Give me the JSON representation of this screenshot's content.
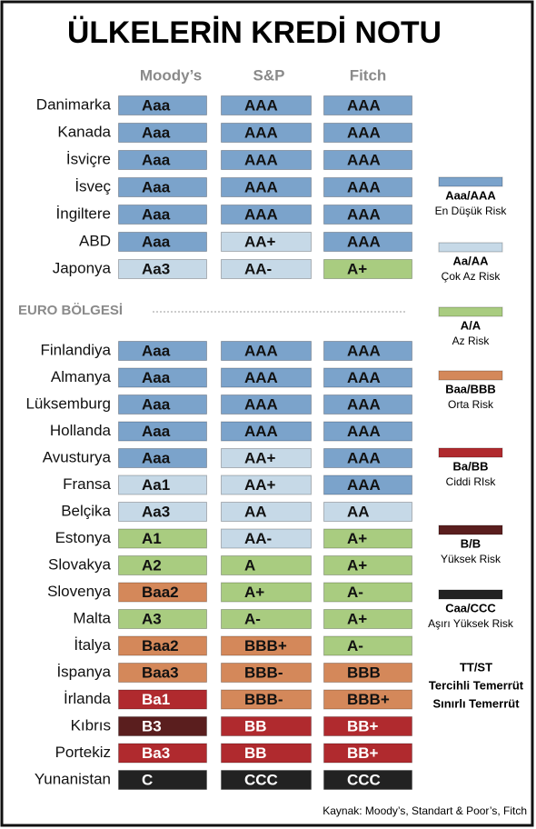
{
  "title": "ÜLKELERİN KREDİ NOTU",
  "columns": [
    "Moody’s",
    "S&P",
    "Fitch"
  ],
  "groups": [
    {
      "rows": [
        {
          "country": "Danimarka",
          "ratings": [
            "Aaa",
            "AAA",
            "AAA"
          ]
        },
        {
          "country": "Kanada",
          "ratings": [
            "Aaa",
            "AAA",
            "AAA"
          ]
        },
        {
          "country": "İsviçre",
          "ratings": [
            "Aaa",
            "AAA",
            "AAA"
          ]
        },
        {
          "country": "İsveç",
          "ratings": [
            "Aaa",
            "AAA",
            "AAA"
          ]
        },
        {
          "country": "İngiltere",
          "ratings": [
            "Aaa",
            "AAA",
            "AAA"
          ]
        },
        {
          "country": "ABD",
          "ratings": [
            "Aaa",
            "AA+",
            "AAA"
          ]
        },
        {
          "country": "Japonya",
          "ratings": [
            "Aa3",
            "AA-",
            "A+"
          ]
        }
      ]
    },
    {
      "label": "EURO BÖLGESİ",
      "rows": [
        {
          "country": "Finlandiya",
          "ratings": [
            "Aaa",
            "AAA",
            "AAA"
          ]
        },
        {
          "country": "Almanya",
          "ratings": [
            "Aaa",
            "AAA",
            "AAA"
          ]
        },
        {
          "country": "Lüksemburg",
          "ratings": [
            "Aaa",
            "AAA",
            "AAA"
          ]
        },
        {
          "country": "Hollanda",
          "ratings": [
            "Aaa",
            "AAA",
            "AAA"
          ]
        },
        {
          "country": "Avusturya",
          "ratings": [
            "Aaa",
            "AA+",
            "AAA"
          ]
        },
        {
          "country": "Fransa",
          "ratings": [
            "Aa1",
            "AA+",
            "AAA"
          ]
        },
        {
          "country": "Belçika",
          "ratings": [
            "Aa3",
            "AA",
            "AA"
          ]
        },
        {
          "country": "Estonya",
          "ratings": [
            "A1",
            "AA-",
            "A+"
          ]
        },
        {
          "country": "Slovakya",
          "ratings": [
            "A2",
            "A",
            "A+"
          ]
        },
        {
          "country": "Slovenya",
          "ratings": [
            "Baa2",
            "A+",
            "A-"
          ]
        },
        {
          "country": "Malta",
          "ratings": [
            "A3",
            "A-",
            "A+"
          ]
        },
        {
          "country": "İtalya",
          "ratings": [
            "Baa2",
            "BBB+",
            "A-"
          ]
        },
        {
          "country": "İspanya",
          "ratings": [
            "Baa3",
            "BBB-",
            "BBB"
          ]
        },
        {
          "country": "İrlanda",
          "ratings": [
            "Ba1",
            "BBB-",
            "BBB+"
          ]
        },
        {
          "country": "Kıbrıs",
          "ratings": [
            "B3",
            "BB",
            "BB+"
          ]
        },
        {
          "country": "Portekiz",
          "ratings": [
            "Ba3",
            "BB",
            "BB+"
          ]
        },
        {
          "country": "Yunanistan",
          "ratings": [
            "C",
            "CCC",
            "CCC"
          ]
        }
      ]
    }
  ],
  "legend": [
    {
      "label": "Aaa/AAA",
      "description": "En Düşük Risk",
      "color": "#7ba3cb"
    },
    {
      "label": "Aa/AA",
      "description": "Çok Az Risk",
      "color": "#c6d9e7"
    },
    {
      "label": "A/A",
      "description": "Az Risk",
      "color": "#a9cc80"
    },
    {
      "label": "Baa/BBB",
      "description": "Orta Risk",
      "color": "#d4885a"
    },
    {
      "label": "Ba/BB",
      "description": "Ciddi RIsk",
      "color": "#b02a2e"
    },
    {
      "label": "B/B",
      "description": "Yüksek Risk",
      "color": "#5a1e1e"
    },
    {
      "label": "Caa/CCC",
      "description": "Aşırı Yüksek Risk",
      "color": "#222222"
    }
  ],
  "note": [
    "TT/ST",
    "Tercihli Temerrüt",
    "Sınırlı Temerrüt"
  ],
  "source": "Kaynak: Moody’s, Standart & Poor’s, Fitch"
}
